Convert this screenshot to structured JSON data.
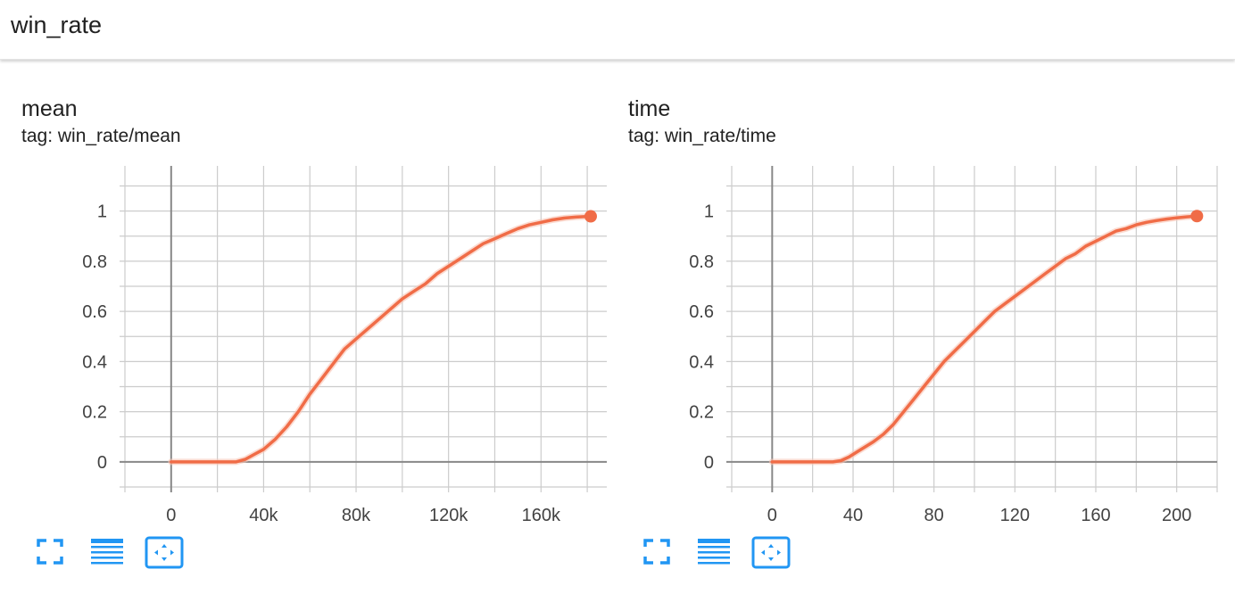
{
  "header": {
    "title": "win_rate"
  },
  "colors": {
    "line": "#f06c47",
    "line_halo": "#f8c3b2",
    "grid": "#cccccc",
    "axis": "#888888",
    "toolbar": "#2196f3"
  },
  "toolbar_icons": [
    "fullscreen-icon",
    "toggle-log-scale-icon",
    "fit-domain-icon"
  ],
  "charts": [
    {
      "title": "mean",
      "tag": "tag: win_rate/mean",
      "chart_data": {
        "type": "line",
        "title": "mean",
        "xlabel": "",
        "ylabel": "",
        "xlim": [
          -20000,
          190000
        ],
        "ylim": [
          -0.1,
          1.18
        ],
        "x_ticks": [
          0,
          40000,
          80000,
          120000,
          160000
        ],
        "x_tick_labels": [
          "0",
          "40k",
          "80k",
          "120k",
          "160k"
        ],
        "y_ticks": [
          0,
          0.2,
          0.4,
          0.6,
          0.8,
          1
        ],
        "y_tick_labels": [
          "0",
          "0.2",
          "0.4",
          "0.6",
          "0.8",
          "1"
        ],
        "x_grid_step": 20000,
        "y_grid_step": 0.1,
        "grid": true,
        "series": [
          {
            "x": [
              0,
              10000,
              20000,
              28000,
              32000,
              36000,
              40000,
              45000,
              50000,
              55000,
              60000,
              65000,
              70000,
              75000,
              80000,
              85000,
              90000,
              95000,
              100000,
              105000,
              110000,
              115000,
              120000,
              125000,
              130000,
              135000,
              140000,
              145000,
              150000,
              155000,
              160000,
              165000,
              170000,
              175000,
              181500
            ],
            "y": [
              0,
              0,
              0,
              0,
              0.01,
              0.03,
              0.05,
              0.09,
              0.14,
              0.2,
              0.27,
              0.33,
              0.39,
              0.45,
              0.49,
              0.53,
              0.57,
              0.61,
              0.65,
              0.68,
              0.71,
              0.75,
              0.78,
              0.81,
              0.84,
              0.87,
              0.89,
              0.91,
              0.93,
              0.945,
              0.955,
              0.965,
              0.972,
              0.976,
              0.979
            ]
          }
        ]
      }
    },
    {
      "title": "time",
      "tag": "tag: win_rate/time",
      "chart_data": {
        "type": "line",
        "title": "time",
        "xlabel": "",
        "ylabel": "",
        "xlim": [
          -20,
          220
        ],
        "ylim": [
          -0.1,
          1.18
        ],
        "x_ticks": [
          0,
          40,
          80,
          120,
          160,
          200
        ],
        "x_tick_labels": [
          "0",
          "40",
          "80",
          "120",
          "160",
          "200"
        ],
        "y_ticks": [
          0,
          0.2,
          0.4,
          0.6,
          0.8,
          1
        ],
        "y_tick_labels": [
          "0",
          "0.2",
          "0.4",
          "0.6",
          "0.8",
          "1"
        ],
        "x_grid_step": 20,
        "y_grid_step": 0.1,
        "grid": true,
        "series": [
          {
            "x": [
              0,
              10,
              20,
              30,
              34,
              38,
              42,
              46,
              50,
              55,
              60,
              65,
              70,
              75,
              80,
              85,
              90,
              95,
              100,
              105,
              110,
              115,
              120,
              125,
              130,
              135,
              140,
              145,
              150,
              155,
              160,
              165,
              170,
              175,
              180,
              185,
              190,
              195,
              200,
              205,
              210
            ],
            "y": [
              0,
              0,
              0,
              0,
              0.005,
              0.02,
              0.04,
              0.06,
              0.08,
              0.11,
              0.15,
              0.2,
              0.25,
              0.3,
              0.35,
              0.4,
              0.44,
              0.48,
              0.52,
              0.56,
              0.6,
              0.63,
              0.66,
              0.69,
              0.72,
              0.75,
              0.78,
              0.81,
              0.83,
              0.86,
              0.88,
              0.9,
              0.92,
              0.93,
              0.945,
              0.955,
              0.962,
              0.968,
              0.973,
              0.977,
              0.98
            ]
          }
        ]
      }
    }
  ]
}
